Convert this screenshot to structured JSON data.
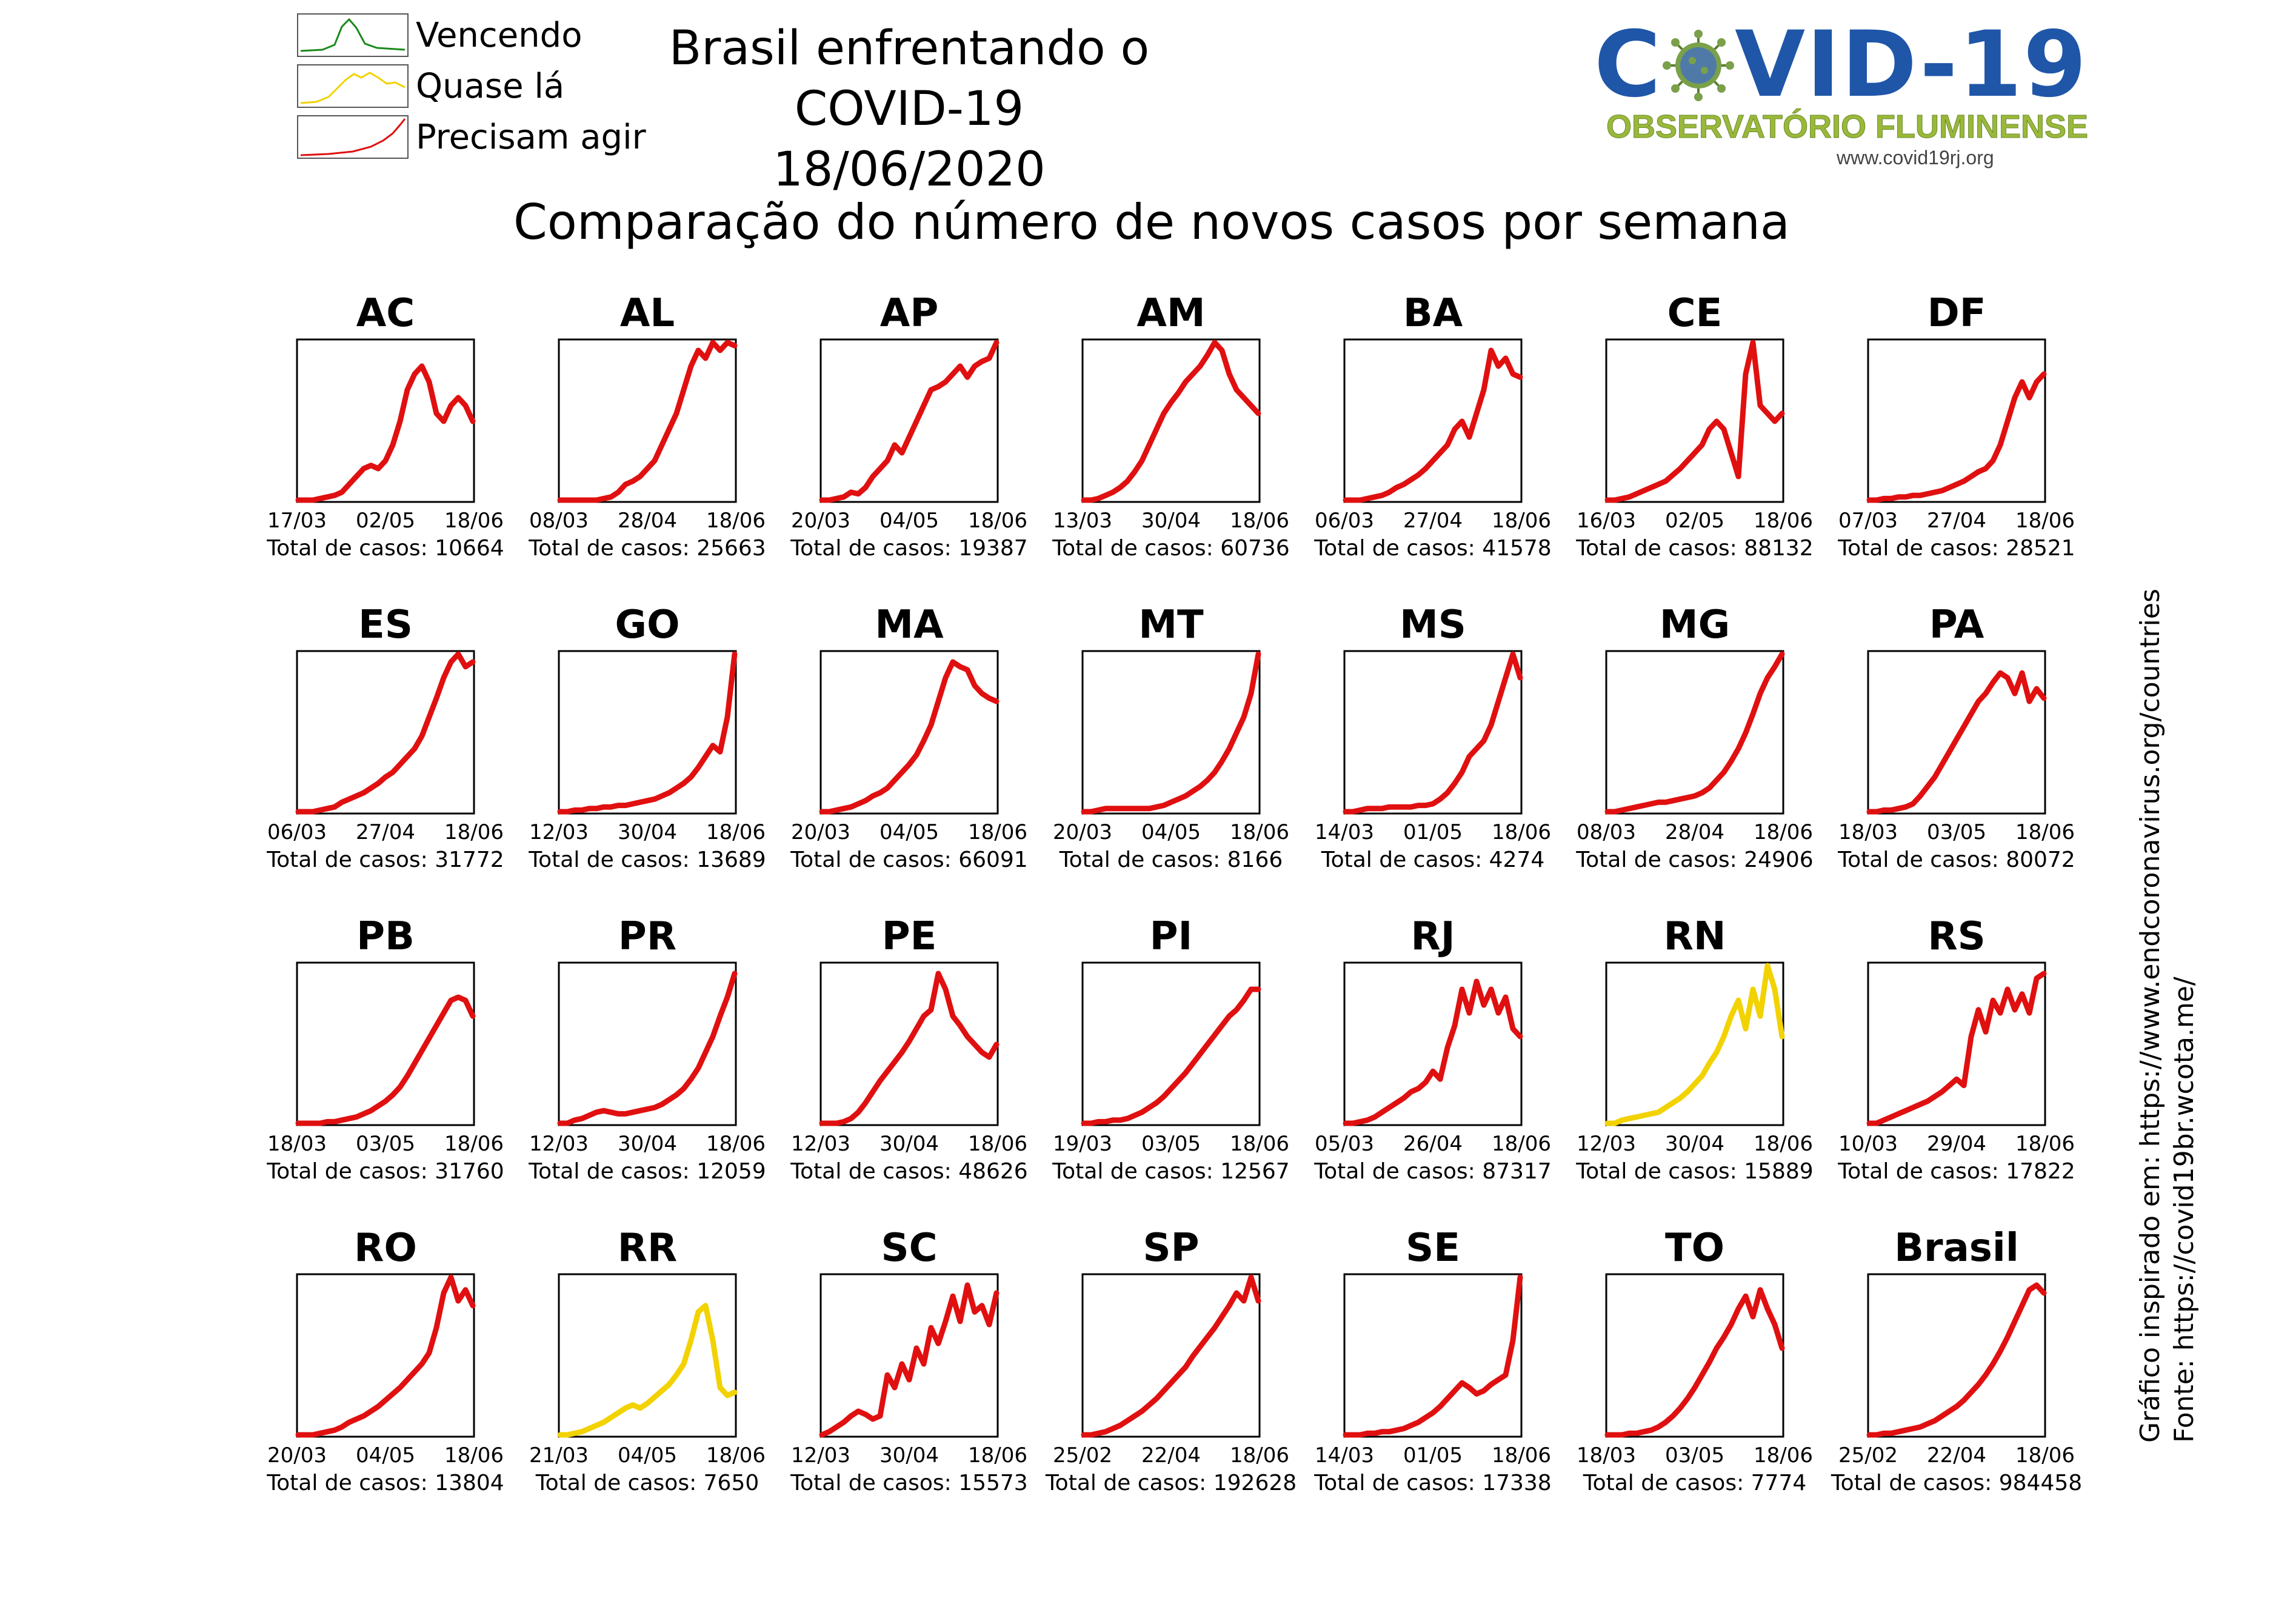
{
  "header": {
    "title": "Brasil enfrentando o COVID-19",
    "date": "18/06/2020",
    "subtitle": "Comparação do número de novos casos por semana"
  },
  "legend": [
    {
      "label": "Vencendo",
      "color": "#1a8a1a",
      "icon": "peak-curve-icon"
    },
    {
      "label": "Quase lá",
      "color": "#f2d200",
      "icon": "plateau-curve-icon"
    },
    {
      "label": "Precisam agir",
      "color": "#e01010",
      "icon": "rising-curve-icon"
    }
  ],
  "logo": {
    "text_left": "C",
    "text_right": "VID-19",
    "org": "OBSERVATÓRIO FLUMINENSE",
    "url": "www.covid19rj.org",
    "main_color": "#1f56a8",
    "virus_color": "#7aa04a",
    "org_color": "#9ab83a"
  },
  "source": {
    "line1": "Gráfico inspirado em: https://www.endcoronavirus.org/countries",
    "line2": "Fonte: https://covid19br.wcota.me/"
  },
  "total_prefix": "Total de casos: ",
  "chart_data": [
    {
      "type": "line",
      "title": "AC",
      "status": "Precisam agir",
      "color": "#e01010",
      "x_ticks": [
        "17/03",
        "02/05",
        "18/06"
      ],
      "total": 10664,
      "values": [
        0,
        0,
        0,
        0.01,
        0.02,
        0.03,
        0.05,
        0.1,
        0.15,
        0.2,
        0.22,
        0.2,
        0.25,
        0.35,
        0.5,
        0.7,
        0.8,
        0.85,
        0.75,
        0.55,
        0.5,
        0.6,
        0.65,
        0.6,
        0.5
      ]
    },
    {
      "type": "line",
      "title": "AL",
      "status": "Precisam agir",
      "color": "#e01010",
      "x_ticks": [
        "08/03",
        "28/04",
        "18/06"
      ],
      "total": 25663,
      "values": [
        0,
        0,
        0,
        0,
        0,
        0,
        0.01,
        0.02,
        0.05,
        0.1,
        0.12,
        0.15,
        0.2,
        0.25,
        0.35,
        0.45,
        0.55,
        0.7,
        0.85,
        0.95,
        0.9,
        1.0,
        0.95,
        1.0,
        0.98
      ]
    },
    {
      "type": "line",
      "title": "AP",
      "status": "Precisam agir",
      "color": "#e01010",
      "x_ticks": [
        "20/03",
        "04/05",
        "18/06"
      ],
      "total": 19387,
      "values": [
        0,
        0,
        0.01,
        0.02,
        0.05,
        0.04,
        0.08,
        0.15,
        0.2,
        0.25,
        0.35,
        0.3,
        0.4,
        0.5,
        0.6,
        0.7,
        0.72,
        0.75,
        0.8,
        0.85,
        0.78,
        0.85,
        0.88,
        0.9,
        1.0
      ]
    },
    {
      "type": "line",
      "title": "AM",
      "status": "Precisam agir",
      "color": "#e01010",
      "x_ticks": [
        "13/03",
        "30/04",
        "18/06"
      ],
      "total": 60736,
      "values": [
        0,
        0,
        0.01,
        0.03,
        0.05,
        0.08,
        0.12,
        0.18,
        0.25,
        0.35,
        0.45,
        0.55,
        0.62,
        0.68,
        0.75,
        0.8,
        0.85,
        0.92,
        1.0,
        0.95,
        0.8,
        0.7,
        0.65,
        0.6,
        0.55
      ]
    },
    {
      "type": "line",
      "title": "BA",
      "status": "Precisam agir",
      "color": "#e01010",
      "x_ticks": [
        "06/03",
        "27/04",
        "18/06"
      ],
      "total": 41578,
      "values": [
        0,
        0,
        0,
        0.01,
        0.02,
        0.03,
        0.05,
        0.08,
        0.1,
        0.13,
        0.16,
        0.2,
        0.25,
        0.3,
        0.35,
        0.45,
        0.5,
        0.4,
        0.55,
        0.7,
        0.95,
        0.85,
        0.9,
        0.8,
        0.78
      ]
    },
    {
      "type": "line",
      "title": "CE",
      "status": "Precisam agir",
      "color": "#e01010",
      "x_ticks": [
        "16/03",
        "02/05",
        "18/06"
      ],
      "total": 88132,
      "values": [
        0,
        0,
        0.01,
        0.02,
        0.04,
        0.06,
        0.08,
        0.1,
        0.12,
        0.16,
        0.2,
        0.25,
        0.3,
        0.35,
        0.45,
        0.5,
        0.45,
        0.3,
        0.15,
        0.8,
        1.0,
        0.6,
        0.55,
        0.5,
        0.55
      ]
    },
    {
      "type": "line",
      "title": "DF",
      "status": "Precisam agir",
      "color": "#e01010",
      "x_ticks": [
        "07/03",
        "27/04",
        "18/06"
      ],
      "total": 28521,
      "values": [
        0,
        0,
        0.01,
        0.01,
        0.02,
        0.02,
        0.03,
        0.03,
        0.04,
        0.05,
        0.06,
        0.08,
        0.1,
        0.12,
        0.15,
        0.18,
        0.2,
        0.25,
        0.35,
        0.5,
        0.65,
        0.75,
        0.65,
        0.75,
        0.8
      ]
    },
    {
      "type": "line",
      "title": "ES",
      "status": "Precisam agir",
      "color": "#e01010",
      "x_ticks": [
        "06/03",
        "27/04",
        "18/06"
      ],
      "total": 31772,
      "values": [
        0,
        0,
        0,
        0.01,
        0.02,
        0.03,
        0.06,
        0.08,
        0.1,
        0.12,
        0.15,
        0.18,
        0.22,
        0.25,
        0.3,
        0.35,
        0.4,
        0.48,
        0.6,
        0.72,
        0.85,
        0.95,
        1.0,
        0.92,
        0.95
      ]
    },
    {
      "type": "line",
      "title": "GO",
      "status": "Precisam agir",
      "color": "#e01010",
      "x_ticks": [
        "12/03",
        "30/04",
        "18/06"
      ],
      "total": 13689,
      "values": [
        0,
        0,
        0.01,
        0.01,
        0.02,
        0.02,
        0.03,
        0.03,
        0.04,
        0.04,
        0.05,
        0.06,
        0.07,
        0.08,
        0.1,
        0.12,
        0.15,
        0.18,
        0.22,
        0.28,
        0.35,
        0.42,
        0.38,
        0.6,
        1.0
      ]
    },
    {
      "type": "line",
      "title": "MA",
      "status": "Precisam agir",
      "color": "#e01010",
      "x_ticks": [
        "20/03",
        "04/05",
        "18/06"
      ],
      "total": 66091,
      "values": [
        0,
        0,
        0.01,
        0.02,
        0.03,
        0.05,
        0.07,
        0.1,
        0.12,
        0.15,
        0.2,
        0.25,
        0.3,
        0.36,
        0.45,
        0.55,
        0.7,
        0.85,
        0.95,
        0.92,
        0.9,
        0.8,
        0.75,
        0.72,
        0.7
      ]
    },
    {
      "type": "line",
      "title": "MT",
      "status": "Precisam agir",
      "color": "#e01010",
      "x_ticks": [
        "20/03",
        "04/05",
        "18/06"
      ],
      "total": 8166,
      "values": [
        0,
        0,
        0.01,
        0.02,
        0.02,
        0.02,
        0.02,
        0.02,
        0.02,
        0.02,
        0.03,
        0.04,
        0.06,
        0.08,
        0.1,
        0.13,
        0.16,
        0.2,
        0.25,
        0.32,
        0.4,
        0.5,
        0.6,
        0.75,
        1.0
      ]
    },
    {
      "type": "line",
      "title": "MS",
      "status": "Precisam agir",
      "color": "#e01010",
      "x_ticks": [
        "14/03",
        "01/05",
        "18/06"
      ],
      "total": 4274,
      "values": [
        0,
        0,
        0.01,
        0.02,
        0.02,
        0.02,
        0.03,
        0.03,
        0.03,
        0.03,
        0.04,
        0.04,
        0.05,
        0.08,
        0.12,
        0.18,
        0.25,
        0.35,
        0.4,
        0.45,
        0.55,
        0.7,
        0.85,
        1.0,
        0.85
      ]
    },
    {
      "type": "line",
      "title": "MG",
      "status": "Precisam agir",
      "color": "#e01010",
      "x_ticks": [
        "08/03",
        "28/04",
        "18/06"
      ],
      "total": 24906,
      "values": [
        0,
        0,
        0.01,
        0.02,
        0.03,
        0.04,
        0.05,
        0.06,
        0.06,
        0.07,
        0.08,
        0.09,
        0.1,
        0.12,
        0.15,
        0.2,
        0.25,
        0.32,
        0.4,
        0.5,
        0.62,
        0.75,
        0.85,
        0.92,
        1.0
      ]
    },
    {
      "type": "line",
      "title": "PA",
      "status": "Precisam agir",
      "color": "#e01010",
      "x_ticks": [
        "18/03",
        "03/05",
        "18/06"
      ],
      "total": 80072,
      "values": [
        0,
        0,
        0.01,
        0.01,
        0.02,
        0.03,
        0.05,
        0.1,
        0.16,
        0.22,
        0.3,
        0.38,
        0.46,
        0.54,
        0.62,
        0.7,
        0.75,
        0.82,
        0.88,
        0.85,
        0.75,
        0.88,
        0.7,
        0.78,
        0.72
      ]
    },
    {
      "type": "line",
      "title": "PB",
      "status": "Precisam agir",
      "color": "#e01010",
      "x_ticks": [
        "18/03",
        "03/05",
        "18/06"
      ],
      "total": 31760,
      "values": [
        0,
        0,
        0,
        0,
        0.01,
        0.01,
        0.02,
        0.03,
        0.04,
        0.06,
        0.08,
        0.11,
        0.14,
        0.18,
        0.23,
        0.3,
        0.38,
        0.46,
        0.54,
        0.62,
        0.7,
        0.78,
        0.8,
        0.78,
        0.68
      ]
    },
    {
      "type": "line",
      "title": "PR",
      "status": "Precisam agir",
      "color": "#e01010",
      "x_ticks": [
        "12/03",
        "30/04",
        "18/06"
      ],
      "total": 12059,
      "values": [
        0,
        0,
        0.02,
        0.03,
        0.05,
        0.07,
        0.08,
        0.07,
        0.06,
        0.06,
        0.07,
        0.08,
        0.09,
        0.1,
        0.12,
        0.15,
        0.18,
        0.22,
        0.28,
        0.35,
        0.45,
        0.55,
        0.68,
        0.8,
        0.95
      ]
    },
    {
      "type": "line",
      "title": "PE",
      "status": "Precisam agir",
      "color": "#e01010",
      "x_ticks": [
        "12/03",
        "30/04",
        "18/06"
      ],
      "total": 48626,
      "values": [
        0,
        0,
        0,
        0.01,
        0.03,
        0.07,
        0.13,
        0.2,
        0.27,
        0.33,
        0.39,
        0.45,
        0.52,
        0.6,
        0.68,
        0.72,
        0.95,
        0.85,
        0.68,
        0.62,
        0.55,
        0.5,
        0.45,
        0.42,
        0.5
      ]
    },
    {
      "type": "line",
      "title": "PI",
      "status": "Precisam agir",
      "color": "#e01010",
      "x_ticks": [
        "19/03",
        "03/05",
        "18/06"
      ],
      "total": 12567,
      "values": [
        0,
        0,
        0.01,
        0.01,
        0.02,
        0.02,
        0.03,
        0.05,
        0.07,
        0.1,
        0.13,
        0.17,
        0.22,
        0.27,
        0.32,
        0.38,
        0.44,
        0.5,
        0.56,
        0.62,
        0.68,
        0.72,
        0.78,
        0.85,
        0.85
      ]
    },
    {
      "type": "line",
      "title": "RJ",
      "status": "Precisam agir",
      "color": "#e01010",
      "x_ticks": [
        "05/03",
        "26/04",
        "18/06"
      ],
      "total": 87317,
      "values": [
        0,
        0,
        0.01,
        0.02,
        0.04,
        0.07,
        0.1,
        0.13,
        0.16,
        0.2,
        0.22,
        0.26,
        0.33,
        0.28,
        0.48,
        0.62,
        0.85,
        0.7,
        0.9,
        0.75,
        0.85,
        0.7,
        0.8,
        0.6,
        0.55
      ]
    },
    {
      "type": "line",
      "title": "RN",
      "status": "Quase lá",
      "color": "#f2d200",
      "x_ticks": [
        "12/03",
        "30/04",
        "18/06"
      ],
      "total": 15889,
      "values": [
        0,
        0,
        0.02,
        0.03,
        0.04,
        0.05,
        0.06,
        0.07,
        0.1,
        0.13,
        0.16,
        0.2,
        0.25,
        0.3,
        0.38,
        0.45,
        0.55,
        0.68,
        0.78,
        0.6,
        0.85,
        0.68,
        1.0,
        0.85,
        0.55
      ]
    },
    {
      "type": "line",
      "title": "RS",
      "status": "Precisam agir",
      "color": "#e01010",
      "x_ticks": [
        "10/03",
        "29/04",
        "18/06"
      ],
      "total": 17822,
      "values": [
        0,
        0,
        0.02,
        0.04,
        0.06,
        0.08,
        0.1,
        0.12,
        0.14,
        0.17,
        0.2,
        0.24,
        0.28,
        0.24,
        0.55,
        0.72,
        0.58,
        0.78,
        0.7,
        0.85,
        0.72,
        0.82,
        0.7,
        0.92,
        0.95
      ]
    },
    {
      "type": "line",
      "title": "RO",
      "status": "Precisam agir",
      "color": "#e01010",
      "x_ticks": [
        "20/03",
        "04/05",
        "18/06"
      ],
      "total": 13804,
      "values": [
        0,
        0,
        0,
        0.01,
        0.02,
        0.03,
        0.05,
        0.08,
        0.1,
        0.12,
        0.15,
        0.18,
        0.22,
        0.26,
        0.3,
        0.35,
        0.4,
        0.45,
        0.52,
        0.68,
        0.9,
        1.0,
        0.85,
        0.92,
        0.82
      ]
    },
    {
      "type": "line",
      "title": "RR",
      "status": "Quase lá",
      "color": "#f2d200",
      "x_ticks": [
        "21/03",
        "04/05",
        "18/06"
      ],
      "total": 7650,
      "values": [
        0,
        0,
        0.01,
        0.02,
        0.04,
        0.06,
        0.08,
        0.11,
        0.14,
        0.17,
        0.19,
        0.17,
        0.2,
        0.24,
        0.28,
        0.32,
        0.38,
        0.45,
        0.6,
        0.78,
        0.82,
        0.6,
        0.3,
        0.25,
        0.27
      ]
    },
    {
      "type": "line",
      "title": "SC",
      "status": "Precisam agir",
      "color": "#e01010",
      "x_ticks": [
        "12/03",
        "30/04",
        "18/06"
      ],
      "total": 15573,
      "values": [
        0,
        0.02,
        0.05,
        0.08,
        0.12,
        0.15,
        0.13,
        0.1,
        0.12,
        0.38,
        0.3,
        0.45,
        0.35,
        0.55,
        0.45,
        0.68,
        0.58,
        0.72,
        0.88,
        0.72,
        0.95,
        0.78,
        0.82,
        0.7,
        0.9
      ]
    },
    {
      "type": "line",
      "title": "SP",
      "status": "Precisam agir",
      "color": "#e01010",
      "x_ticks": [
        "25/02",
        "22/04",
        "18/06"
      ],
      "total": 192628,
      "values": [
        0,
        0,
        0.01,
        0.02,
        0.04,
        0.06,
        0.09,
        0.12,
        0.15,
        0.19,
        0.23,
        0.28,
        0.33,
        0.38,
        0.43,
        0.5,
        0.56,
        0.62,
        0.68,
        0.75,
        0.82,
        0.9,
        0.85,
        1.0,
        0.85
      ]
    },
    {
      "type": "line",
      "title": "SE",
      "status": "Precisam agir",
      "color": "#e01010",
      "x_ticks": [
        "14/03",
        "01/05",
        "18/06"
      ],
      "total": 17338,
      "values": [
        0,
        0,
        0,
        0.01,
        0.01,
        0.02,
        0.02,
        0.03,
        0.04,
        0.06,
        0.08,
        0.11,
        0.14,
        0.18,
        0.23,
        0.28,
        0.33,
        0.3,
        0.26,
        0.28,
        0.32,
        0.35,
        0.38,
        0.6,
        1.0
      ]
    },
    {
      "type": "line",
      "title": "TO",
      "status": "Precisam agir",
      "color": "#e01010",
      "x_ticks": [
        "18/03",
        "03/05",
        "18/06"
      ],
      "total": 7774,
      "values": [
        0,
        0,
        0,
        0.01,
        0.01,
        0.02,
        0.03,
        0.05,
        0.08,
        0.12,
        0.17,
        0.23,
        0.3,
        0.38,
        0.46,
        0.55,
        0.62,
        0.7,
        0.8,
        0.88,
        0.75,
        0.92,
        0.8,
        0.7,
        0.55
      ]
    },
    {
      "type": "line",
      "title": "Brasil",
      "status": "Precisam agir",
      "color": "#e01010",
      "x_ticks": [
        "25/02",
        "22/04",
        "18/06"
      ],
      "total": 984458,
      "values": [
        0,
        0,
        0.01,
        0.01,
        0.02,
        0.03,
        0.04,
        0.05,
        0.07,
        0.09,
        0.12,
        0.15,
        0.18,
        0.22,
        0.27,
        0.32,
        0.38,
        0.45,
        0.53,
        0.62,
        0.72,
        0.82,
        0.92,
        0.95,
        0.9
      ]
    }
  ]
}
